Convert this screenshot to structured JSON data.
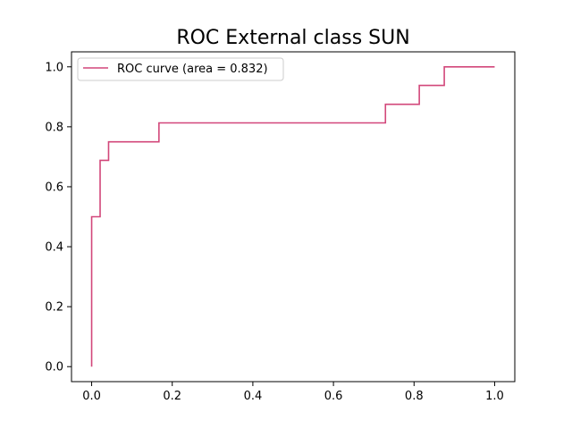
{
  "chart_data": {
    "type": "line",
    "title": "ROC External class SUN",
    "xlabel": "",
    "ylabel": "",
    "xlim": [
      -0.05,
      1.05
    ],
    "ylim": [
      -0.05,
      1.05
    ],
    "xticks": [
      0.0,
      0.2,
      0.4,
      0.6,
      0.8,
      1.0
    ],
    "yticks": [
      0.0,
      0.2,
      0.4,
      0.6,
      0.8,
      1.0
    ],
    "xtick_labels": [
      "0.0",
      "0.2",
      "0.4",
      "0.6",
      "0.8",
      "1.0"
    ],
    "ytick_labels": [
      "0.0",
      "0.2",
      "0.4",
      "0.6",
      "0.8",
      "1.0"
    ],
    "grid": false,
    "legend_position": "upper-left",
    "series": [
      {
        "name": "ROC curve (area = 0.832)",
        "color": "#d2477a",
        "x": [
          0.0,
          0.0,
          0.0,
          0.021,
          0.021,
          0.042,
          0.042,
          0.167,
          0.167,
          0.729,
          0.729,
          0.813,
          0.813,
          0.875,
          0.875,
          1.0
        ],
        "y": [
          0.0,
          0.5,
          0.5,
          0.5,
          0.688,
          0.688,
          0.75,
          0.75,
          0.813,
          0.813,
          0.875,
          0.875,
          0.938,
          0.938,
          1.0,
          1.0
        ]
      }
    ]
  }
}
